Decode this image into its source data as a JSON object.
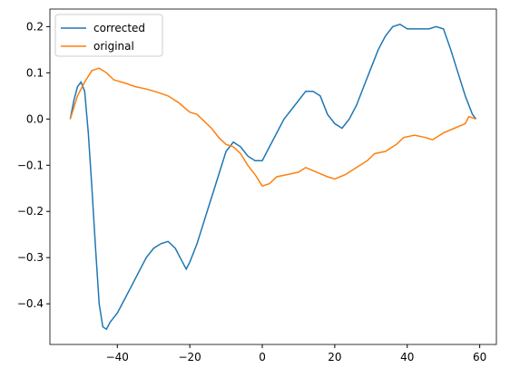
{
  "chart_data": {
    "type": "line",
    "xlim": [
      -58.6,
      64.6
    ],
    "xticks": [
      {
        "value": -40,
        "label": "−40"
      },
      {
        "value": -20,
        "label": "−20"
      },
      0,
      20,
      40,
      60
    ],
    "ylim": [
      -0.488,
      0.238
    ],
    "yticks": [
      {
        "value": -0.4,
        "label": "−0.4"
      },
      {
        "value": -0.3,
        "label": "−0.3"
      },
      {
        "value": -0.2,
        "label": "−0.2"
      },
      {
        "value": -0.1,
        "label": "−0.1"
      },
      {
        "value": 0,
        "label": "0.0"
      },
      0.1,
      0.2
    ],
    "legend": "upper left",
    "series": [
      {
        "name": "corrected",
        "color": "#1f77b4",
        "x": [
          -53,
          -52,
          -51,
          -50,
          -49,
          -48,
          -47,
          -46,
          -45,
          -44,
          -43,
          -42,
          -40,
          -38,
          -36,
          -34,
          -32,
          -30,
          -28,
          -26,
          -24,
          -22,
          -21,
          -20,
          -18,
          -16,
          -14,
          -12,
          -10,
          -8,
          -6,
          -4,
          -2,
          0,
          2,
          4,
          6,
          8,
          10,
          12,
          14,
          16,
          18,
          20,
          22,
          24,
          26,
          28,
          30,
          32,
          34,
          36,
          38,
          40,
          42,
          44,
          46,
          48,
          50,
          52,
          54,
          56,
          58,
          59
        ],
        "values": [
          0.0,
          0.04,
          0.07,
          0.08,
          0.06,
          -0.03,
          -0.15,
          -0.28,
          -0.4,
          -0.45,
          -0.455,
          -0.44,
          -0.42,
          -0.39,
          -0.36,
          -0.33,
          -0.3,
          -0.28,
          -0.27,
          -0.265,
          -0.28,
          -0.31,
          -0.325,
          -0.31,
          -0.27,
          -0.22,
          -0.17,
          -0.12,
          -0.07,
          -0.05,
          -0.06,
          -0.08,
          -0.09,
          -0.09,
          -0.06,
          -0.03,
          0.0,
          0.02,
          0.04,
          0.06,
          0.06,
          0.05,
          0.01,
          -0.01,
          -0.02,
          0.0,
          0.03,
          0.07,
          0.11,
          0.15,
          0.18,
          0.2,
          0.205,
          0.195,
          0.195,
          0.195,
          0.195,
          0.2,
          0.195,
          0.15,
          0.1,
          0.05,
          0.01,
          0.0
        ]
      },
      {
        "name": "original",
        "color": "#ff7f0e",
        "x": [
          -53,
          -51,
          -49,
          -47,
          -45,
          -43,
          -41,
          -38,
          -35,
          -32,
          -29,
          -26,
          -23,
          -20,
          -18,
          -16,
          -14,
          -12,
          -10,
          -8,
          -6,
          -4,
          -2,
          0,
          2,
          4,
          7,
          10,
          12,
          15,
          18,
          20,
          23,
          26,
          29,
          31,
          34,
          37,
          39,
          42,
          45,
          47,
          50,
          53,
          56,
          57,
          59
        ],
        "values": [
          0.0,
          0.05,
          0.08,
          0.105,
          0.11,
          0.1,
          0.085,
          0.078,
          0.07,
          0.065,
          0.058,
          0.05,
          0.035,
          0.015,
          0.01,
          -0.005,
          -0.02,
          -0.04,
          -0.055,
          -0.06,
          -0.075,
          -0.1,
          -0.12,
          -0.145,
          -0.14,
          -0.125,
          -0.12,
          -0.115,
          -0.105,
          -0.115,
          -0.125,
          -0.13,
          -0.12,
          -0.105,
          -0.09,
          -0.075,
          -0.07,
          -0.055,
          -0.04,
          -0.035,
          -0.04,
          -0.045,
          -0.03,
          -0.02,
          -0.01,
          0.005,
          0.0
        ]
      }
    ]
  }
}
